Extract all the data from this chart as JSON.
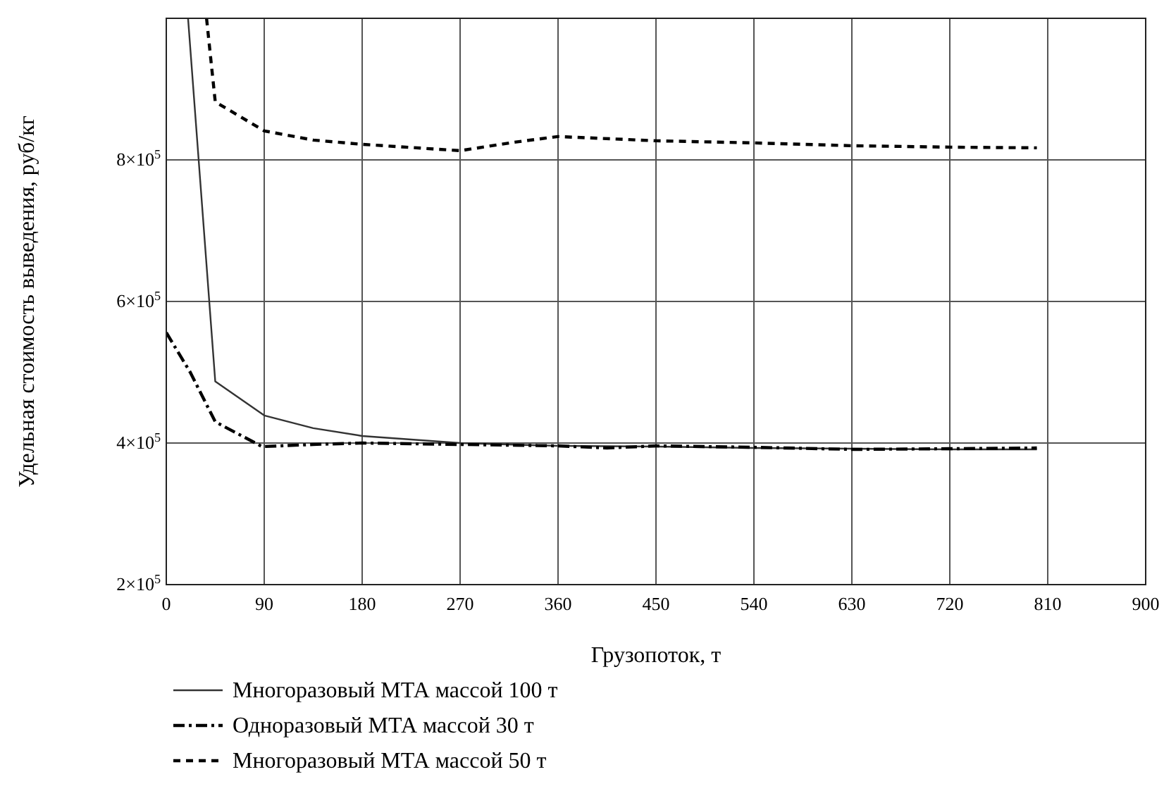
{
  "chart_data": {
    "type": "line",
    "xlabel": "Грузопоток, т",
    "ylabel": "Удельная стоимость выведения, руб/кг",
    "xlim": [
      0,
      900
    ],
    "xticks": [
      0,
      90,
      180,
      270,
      360,
      450,
      540,
      630,
      720,
      810,
      900
    ],
    "ylim": [
      200000,
      1000000
    ],
    "yticks": [
      {
        "value": 200000,
        "label": "2×10$^{5}$"
      },
      {
        "value": 400000,
        "label": "4×10$^{5}$"
      },
      {
        "value": 600000,
        "label": "6×10$^{5}$"
      },
      {
        "value": 800000,
        "label": "8×10$^{5}$"
      }
    ],
    "grid": true,
    "legend": "bottom left",
    "series": [
      {
        "name": "Многоразовый МТА массой 100 т",
        "color": "#333333",
        "line_style": "solid",
        "x": [
          20,
          45,
          90,
          135,
          180,
          270,
          360,
          450,
          540,
          630,
          720,
          800
        ],
        "values": [
          1000000,
          487000,
          439000,
          421000,
          410000,
          400000,
          396000,
          395000,
          393000,
          392000,
          391000,
          391000
        ]
      },
      {
        "name": "Одноразовый МТА массой 30 т",
        "color": "#000000",
        "line_style": "dashdot",
        "x": [
          0,
          22,
          45,
          88,
          135,
          180,
          270,
          360,
          405,
          450,
          540,
          630,
          720,
          800
        ],
        "values": [
          556000,
          500000,
          430000,
          395000,
          398000,
          400000,
          398000,
          396000,
          393000,
          396000,
          394000,
          391000,
          392000,
          393000
        ]
      },
      {
        "name": "Многоразовый МТА массой 50 т",
        "color": "#000000",
        "line_style": "dashed",
        "x": [
          37,
          45,
          90,
          135,
          180,
          270,
          320,
          360,
          450,
          540,
          630,
          720,
          800
        ],
        "values": [
          1000000,
          882000,
          841000,
          828000,
          822000,
          813000,
          825000,
          833000,
          827000,
          824000,
          820000,
          818000,
          817000
        ]
      }
    ]
  }
}
